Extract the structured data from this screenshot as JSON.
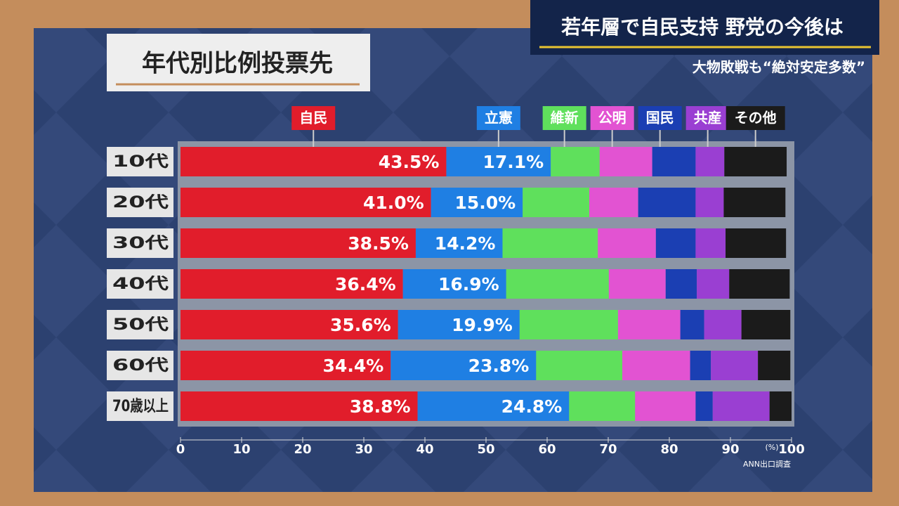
{
  "header": {
    "title": "若年層で自民支持 野党の今後は",
    "subtitle": "大物敗戦も“絶対安定多数”"
  },
  "chart_data": {
    "type": "bar",
    "orientation": "horizontal",
    "stacked": true,
    "title": "年代別比例投票先",
    "xlabel": "(%)",
    "source": "ANN出口調査",
    "categories": [
      "10代",
      "20代",
      "30代",
      "40代",
      "50代",
      "60代",
      "70歳以上"
    ],
    "xlim": [
      0,
      100
    ],
    "xticks": [
      0,
      10,
      20,
      30,
      40,
      50,
      60,
      70,
      80,
      90,
      100
    ],
    "series": [
      {
        "name": "自民",
        "color": "#e11d2b",
        "values": [
          43.5,
          41.0,
          38.5,
          36.4,
          35.6,
          34.4,
          38.8
        ],
        "value_labels": [
          "43.5%",
          "41.0%",
          "38.5%",
          "36.4%",
          "35.6%",
          "34.4%",
          "38.8%"
        ]
      },
      {
        "name": "立憲",
        "color": "#1f7fe3",
        "values": [
          17.1,
          15.0,
          14.2,
          16.9,
          19.9,
          23.8,
          24.8
        ],
        "value_labels": [
          "17.1%",
          "15.0%",
          "14.2%",
          "16.9%",
          "19.9%",
          "23.8%",
          "24.8%"
        ]
      },
      {
        "name": "維新",
        "color": "#5fe05c",
        "values": [
          8.0,
          10.9,
          15.6,
          16.8,
          16.1,
          14.1,
          10.8
        ]
      },
      {
        "name": "公明",
        "color": "#e253d2",
        "values": [
          8.6,
          8.0,
          9.5,
          9.3,
          10.2,
          11.1,
          9.9
        ]
      },
      {
        "name": "国民",
        "color": "#1b3fb3",
        "values": [
          7.1,
          9.4,
          6.5,
          5.1,
          3.9,
          3.4,
          2.8
        ]
      },
      {
        "name": "共産",
        "color": "#9a3fd2",
        "values": [
          4.7,
          4.6,
          4.9,
          5.3,
          6.1,
          7.7,
          9.3
        ]
      },
      {
        "name": "その他",
        "color": "#1b1b1b",
        "values": [
          10.2,
          10.1,
          9.9,
          9.9,
          8.0,
          5.3,
          3.6
        ]
      }
    ]
  }
}
